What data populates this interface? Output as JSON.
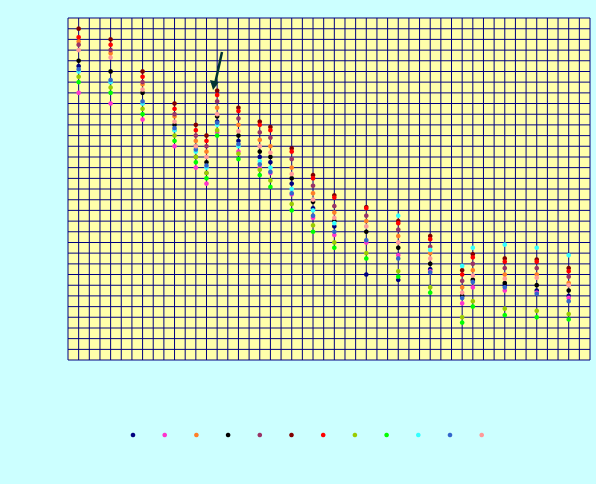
{
  "chart_data": {
    "type": "scatter",
    "grid": true,
    "grid_color": "#000080",
    "plot_color": "#ffffaa",
    "xlim": [
      0,
      49
    ],
    "ylim": [
      0,
      32
    ],
    "xticks": [
      0,
      1,
      2,
      3,
      4,
      5,
      6,
      7,
      8,
      9,
      10,
      11,
      12,
      13,
      14,
      15,
      16,
      17,
      18,
      19,
      20,
      21,
      22,
      23,
      24,
      25,
      26,
      27,
      28,
      29,
      30,
      31,
      32,
      33,
      34,
      35,
      36,
      37,
      38,
      39,
      40,
      41,
      42,
      43,
      44,
      45,
      46,
      47,
      48,
      49
    ],
    "yticks": [
      0,
      1,
      2,
      3,
      4,
      5,
      6,
      7,
      8,
      9,
      10,
      11,
      12,
      13,
      14,
      15,
      16,
      17,
      18,
      19,
      20,
      21,
      22,
      23,
      24,
      25,
      26,
      27,
      28,
      29,
      30,
      31,
      32
    ],
    "x": [
      1,
      4,
      7,
      10,
      12,
      13,
      14,
      16,
      18,
      19,
      21,
      23,
      25,
      28,
      31,
      34,
      37,
      38,
      41,
      44,
      47
    ],
    "series": [
      {
        "color": "#000080",
        "values": [
          27.5,
          26,
          24,
          21.5,
          19,
          17.5,
          22.3,
          20.5,
          19,
          18.5,
          16.5,
          14.2,
          12.5,
          8,
          7.5,
          8.5,
          6,
          7.5,
          7,
          6.5,
          6
        ]
      },
      {
        "color": "#ff33cc",
        "values": [
          25,
          24,
          22.5,
          20,
          18,
          16.5,
          21.3,
          19.5,
          18,
          17.5,
          15.5,
          13.3,
          11.7,
          11,
          9.8,
          8.3,
          5.3,
          6.8,
          6.5,
          6.3,
          5.8
        ]
      },
      {
        "color": "#ff7f27",
        "values": [
          29.8,
          28.7,
          25.8,
          22.8,
          20.5,
          19.5,
          23.6,
          22,
          20.6,
          20,
          18,
          15.6,
          13.8,
          13,
          11.6,
          10,
          6.8,
          8.4,
          8,
          8,
          7.2
        ]
      },
      {
        "color": "#000000",
        "values": [
          28,
          27,
          25,
          22,
          20,
          18.5,
          22.8,
          21,
          19.5,
          19,
          17,
          14.8,
          13,
          12,
          10.5,
          9,
          6,
          7.5,
          7.2,
          7,
          6.5
        ]
      },
      {
        "color": "#993366",
        "values": [
          29.5,
          29,
          26,
          23,
          21,
          20,
          24.2,
          22.6,
          21.3,
          20.8,
          18.8,
          16.3,
          14.4,
          13.5,
          12.2,
          10.6,
          7.4,
          9,
          8.6,
          8.6,
          7.8
        ]
      },
      {
        "color": "#800000",
        "values": [
          31,
          30,
          27,
          24,
          22,
          21,
          25.2,
          23.6,
          22.3,
          21.8,
          19.8,
          17.3,
          15.4,
          14.3,
          13,
          11.6,
          8.4,
          9.9,
          9.5,
          9.4,
          8.6
        ]
      },
      {
        "color": "#ff0000",
        "values": [
          30.2,
          29.5,
          26.5,
          23.5,
          21.5,
          20.5,
          24.8,
          23.3,
          22,
          21.5,
          19.5,
          17,
          15.2,
          14.2,
          12.8,
          11.3,
          8,
          9.6,
          9.2,
          9.2,
          8.3
        ]
      },
      {
        "color": "#99cc00",
        "values": [
          26.5,
          25.5,
          23.5,
          21,
          19,
          17.5,
          21.5,
          19.3,
          17.8,
          16.8,
          14.6,
          12.6,
          11,
          10,
          8.3,
          6.8,
          4,
          5.5,
          4.8,
          4.6,
          4.3
        ]
      },
      {
        "color": "#00ff00",
        "values": [
          26,
          25,
          23,
          20.5,
          18.5,
          17,
          21,
          18.8,
          17.3,
          16.2,
          14,
          12,
          10.5,
          9.5,
          7.8,
          6.3,
          3.5,
          5,
          4.2,
          4,
          3.8
        ]
      },
      {
        "color": "#33ffff",
        "values": [
          27,
          26,
          24,
          21.5,
          19.5,
          18,
          22,
          20,
          18.6,
          18,
          16,
          14,
          12.8,
          12.5,
          13.5,
          10.3,
          8.8,
          10.5,
          10.8,
          10.5,
          9.8
        ]
      },
      {
        "color": "#3366cc",
        "values": [
          27.2,
          26.2,
          24.2,
          21.7,
          19.7,
          18.2,
          22.2,
          20.2,
          18.3,
          17.6,
          15.6,
          13.5,
          12,
          11.2,
          9.5,
          8.2,
          5.8,
          7.3,
          6.8,
          6.2,
          5.5
        ]
      },
      {
        "color": "#ff9999",
        "values": [
          29,
          28.3,
          25.3,
          22.3,
          20,
          19,
          23,
          21.4,
          20,
          19.4,
          17.4,
          15,
          13.3,
          12.5,
          11,
          9.5,
          6.3,
          7.9,
          7.6,
          7.7,
          7
        ]
      }
    ]
  }
}
